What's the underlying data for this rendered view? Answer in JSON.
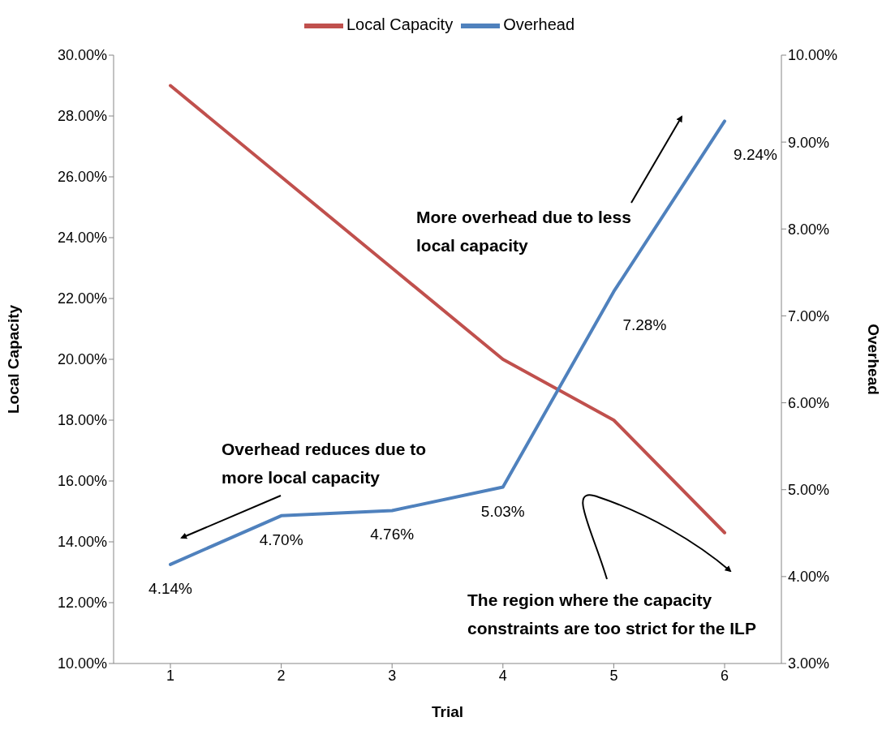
{
  "chart_data": {
    "type": "line",
    "xlabel": "Trial",
    "ylabel": "Local Capacity",
    "y2label": "Overhead",
    "categories": [
      "1",
      "2",
      "3",
      "4",
      "5",
      "6"
    ],
    "series": [
      {
        "name": "Local Capacity",
        "color": "#c0504d",
        "values": [
          29.0,
          26.0,
          23.0,
          20.0,
          18.0,
          14.3
        ]
      },
      {
        "name": "Overhead",
        "color": "#4f81bd",
        "axis": "y2",
        "values": [
          4.14,
          4.7,
          4.76,
          5.03,
          7.28,
          9.24
        ],
        "value_labels": [
          "4.14%",
          "4.70%",
          "4.76%",
          "5.03%",
          "7.28%",
          "9.24%"
        ]
      }
    ],
    "ylim": [
      10,
      30
    ],
    "yticks": [
      {
        "value": 10,
        "label": "10.00%"
      },
      {
        "value": 12,
        "label": "12.00%"
      },
      {
        "value": 14,
        "label": "14.00%"
      },
      {
        "value": 16,
        "label": "16.00%"
      },
      {
        "value": 18,
        "label": "18.00%"
      },
      {
        "value": 20,
        "label": "20.00%"
      },
      {
        "value": 22,
        "label": "22.00%"
      },
      {
        "value": 24,
        "label": "24.00%"
      },
      {
        "value": 26,
        "label": "26.00%"
      },
      {
        "value": 28,
        "label": "28.00%"
      },
      {
        "value": 30,
        "label": "30.00%"
      }
    ],
    "y2lim": [
      3,
      10
    ],
    "y2ticks": [
      {
        "value": 3,
        "label": "3.00%"
      },
      {
        "value": 4,
        "label": "4.00%"
      },
      {
        "value": 5,
        "label": "5.00%"
      },
      {
        "value": 6,
        "label": "6.00%"
      },
      {
        "value": 7,
        "label": "7.00%"
      },
      {
        "value": 8,
        "label": "8.00%"
      },
      {
        "value": 9,
        "label": "9.00%"
      },
      {
        "value": 10,
        "label": "10.00%"
      }
    ],
    "annotations": [
      "Overhead reduces due to more local capacity",
      "More overhead due to less local capacity",
      "The region where the capacity constraints are too strict for the ILP"
    ],
    "legend": "top",
    "grid": false,
    "marker": "none",
    "line_style": "solid"
  }
}
